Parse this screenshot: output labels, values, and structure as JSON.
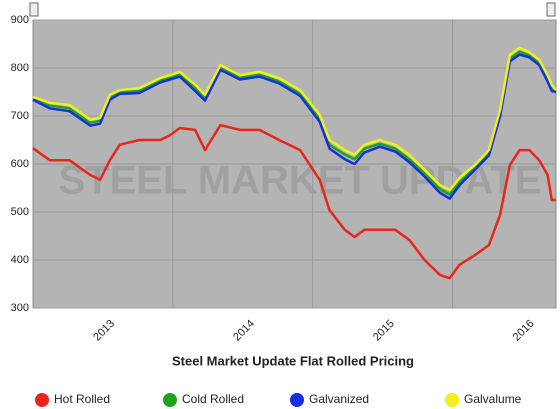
{
  "chart_data": {
    "type": "line",
    "title": "Steel Market Update Flat Rolled Pricing",
    "watermark": "STEEL MARKET UPDATE",
    "x": [
      2013.0,
      2013.12,
      2013.26,
      2013.41,
      2013.48,
      2013.55,
      2013.62,
      2013.76,
      2013.91,
      2013.98,
      2014.05,
      2014.16,
      2014.23,
      2014.34,
      2014.48,
      2014.62,
      2014.76,
      2014.91,
      2015.05,
      2015.12,
      2015.23,
      2015.3,
      2015.37,
      2015.48,
      2015.59,
      2015.69,
      2015.8,
      2015.91,
      2015.98,
      2016.05,
      2016.16,
      2016.26,
      2016.34,
      2016.41,
      2016.48,
      2016.55,
      2016.62,
      2016.68,
      2016.71,
      2016.74
    ],
    "series": [
      {
        "name": "Hot Rolled",
        "color": "#e8261c",
        "values": [
          633,
          608,
          608,
          577,
          567,
          608,
          640,
          650,
          650,
          660,
          675,
          671,
          629,
          681,
          671,
          671,
          650,
          629,
          567,
          504,
          463,
          448,
          463,
          463,
          463,
          442,
          400,
          369,
          362,
          390,
          410,
          431,
          494,
          598,
          629,
          629,
          608,
          577,
          525,
          525
        ]
      },
      {
        "name": "Cold Rolled",
        "color": "#1ea31e",
        "values": [
          736,
          722,
          716,
          686,
          690,
          738,
          750,
          752,
          774,
          780,
          786,
          758,
          736,
          800,
          780,
          786,
          772,
          746,
          694,
          640,
          620,
          610,
          632,
          642,
          632,
          610,
          580,
          548,
          536,
          562,
          592,
          622,
          706,
          820,
          834,
          826,
          810,
          778,
          758,
          752
        ]
      },
      {
        "name": "Galvanized",
        "color": "#1430e0",
        "values": [
          734,
          716,
          710,
          680,
          684,
          734,
          746,
          748,
          770,
          776,
          782,
          752,
          732,
          796,
          776,
          782,
          768,
          742,
          688,
          632,
          610,
          600,
          624,
          636,
          626,
          604,
          574,
          540,
          528,
          556,
          588,
          618,
          700,
          814,
          828,
          822,
          806,
          772,
          752,
          750
        ]
      },
      {
        "name": "Galvalume",
        "color": "#f0f020",
        "values": [
          740,
          727,
          723,
          692,
          696,
          744,
          754,
          758,
          779,
          785,
          792,
          765,
          744,
          806,
          785,
          792,
          779,
          754,
          702,
          650,
          629,
          619,
          640,
          650,
          640,
          619,
          588,
          556,
          546,
          571,
          598,
          629,
          713,
          827,
          842,
          833,
          817,
          785,
          765,
          754
        ]
      }
    ],
    "xlim": [
      2013.0,
      2016.74
    ],
    "xticks": [
      {
        "value": 2013.5,
        "label": "2013"
      },
      {
        "value": 2014.5,
        "label": "2014"
      },
      {
        "value": 2015.5,
        "label": "2015"
      },
      {
        "value": 2016.5,
        "label": "2016"
      }
    ],
    "xgrid": [
      2014,
      2015,
      2016
    ],
    "ylim": [
      300,
      900
    ],
    "yticks": [
      300,
      400,
      500,
      600,
      700,
      800,
      900
    ],
    "grid": true
  }
}
